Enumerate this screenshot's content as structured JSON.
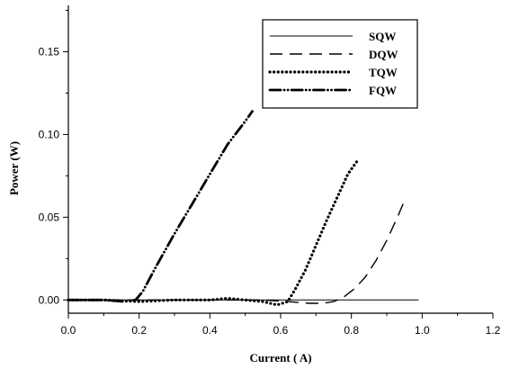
{
  "chart_data": {
    "type": "line",
    "xlabel": "Current ( A)",
    "ylabel": "Power (W)",
    "xlim": [
      0.0,
      1.2
    ],
    "ylim": [
      -0.008,
      0.178
    ],
    "xticks": [
      0.0,
      0.2,
      0.4,
      0.6,
      0.8,
      1.0,
      1.2
    ],
    "xtick_labels": [
      "0.0",
      "0.2",
      "0.4",
      "0.6",
      "0.8",
      "1.0",
      "1.2"
    ],
    "yticks": [
      0.0,
      0.05,
      0.1,
      0.15
    ],
    "ytick_labels": [
      "0.00",
      "0.05",
      "0.10",
      "0.15"
    ],
    "grid": false,
    "legend_position": "top-right",
    "series": [
      {
        "name": "SQW",
        "style": "solid",
        "x": [
          0.0,
          0.99
        ],
        "y": [
          0.0,
          0.0
        ]
      },
      {
        "name": "DQW",
        "style": "dashed",
        "x": [
          0.0,
          0.2,
          0.4,
          0.55,
          0.62,
          0.68,
          0.72,
          0.75,
          0.78,
          0.81,
          0.84,
          0.87,
          0.9,
          0.93,
          0.95
        ],
        "y": [
          0.0,
          0.0,
          0.0,
          0.0,
          -0.001,
          -0.002,
          -0.002,
          -0.001,
          0.002,
          0.007,
          0.014,
          0.024,
          0.036,
          0.05,
          0.06
        ]
      },
      {
        "name": "TQW",
        "style": "dotted",
        "x": [
          0.0,
          0.1,
          0.2,
          0.3,
          0.4,
          0.45,
          0.5,
          0.55,
          0.59,
          0.62,
          0.64,
          0.67,
          0.7,
          0.73,
          0.76,
          0.79,
          0.82
        ],
        "y": [
          0.0,
          0.0,
          -0.001,
          0.0,
          0.0,
          0.001,
          0.0,
          -0.001,
          -0.003,
          -0.001,
          0.006,
          0.018,
          0.033,
          0.048,
          0.062,
          0.076,
          0.085
        ]
      },
      {
        "name": "FQW",
        "style": "dash-dot-dot",
        "x": [
          0.0,
          0.1,
          0.16,
          0.19,
          0.21,
          0.25,
          0.3,
          0.35,
          0.4,
          0.45,
          0.5,
          0.52
        ],
        "y": [
          0.0,
          0.0,
          -0.001,
          0.0,
          0.005,
          0.021,
          0.04,
          0.058,
          0.076,
          0.094,
          0.108,
          0.114
        ]
      }
    ]
  }
}
